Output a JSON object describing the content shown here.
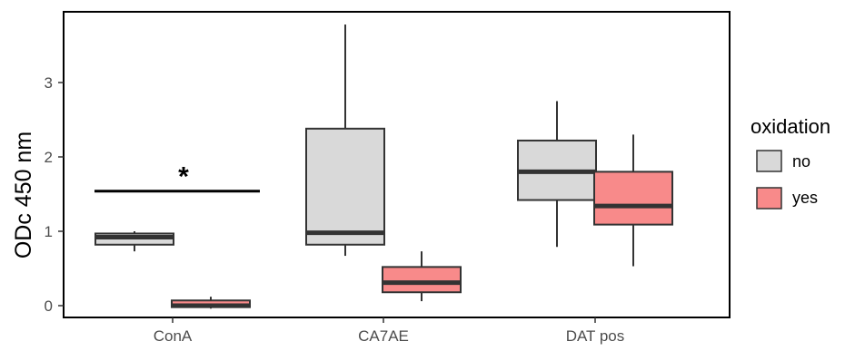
{
  "chart_data": {
    "type": "box",
    "title": "",
    "xlabel": "",
    "ylabel": "ODc 450 nm",
    "ylim": [
      -0.1,
      3.95
    ],
    "yticks": [
      0,
      1,
      2,
      3
    ],
    "grid": false,
    "categories": [
      "ConA",
      "CA7AE",
      "DAT pos"
    ],
    "legend": {
      "title": "oxidation",
      "placement": "right",
      "entries": [
        {
          "label": "no",
          "color": "#d9d9d9"
        },
        {
          "label": "yes",
          "color": "#f88a8a"
        }
      ]
    },
    "series": [
      {
        "name": "no",
        "color": "#d9d9d9",
        "boxes": [
          {
            "min": 0.73,
            "q1": 0.82,
            "median": 0.92,
            "q3": 0.97,
            "max": 1.0
          },
          {
            "min": 0.67,
            "q1": 0.82,
            "median": 0.98,
            "q3": 2.38,
            "max": 3.78
          },
          {
            "min": 0.79,
            "q1": 1.42,
            "median": 1.8,
            "q3": 2.22,
            "max": 2.75
          }
        ]
      },
      {
        "name": "yes",
        "color": "#f88a8a",
        "boxes": [
          {
            "min": -0.04,
            "q1": -0.02,
            "median": 0.0,
            "q3": 0.07,
            "max": 0.12
          },
          {
            "min": 0.06,
            "q1": 0.18,
            "median": 0.31,
            "q3": 0.52,
            "max": 0.73
          },
          {
            "min": 0.53,
            "q1": 1.09,
            "median": 1.34,
            "q3": 1.8,
            "max": 2.3
          }
        ]
      }
    ],
    "annotations": [
      {
        "text": "*",
        "group": "ConA",
        "y": 1.54
      }
    ]
  }
}
